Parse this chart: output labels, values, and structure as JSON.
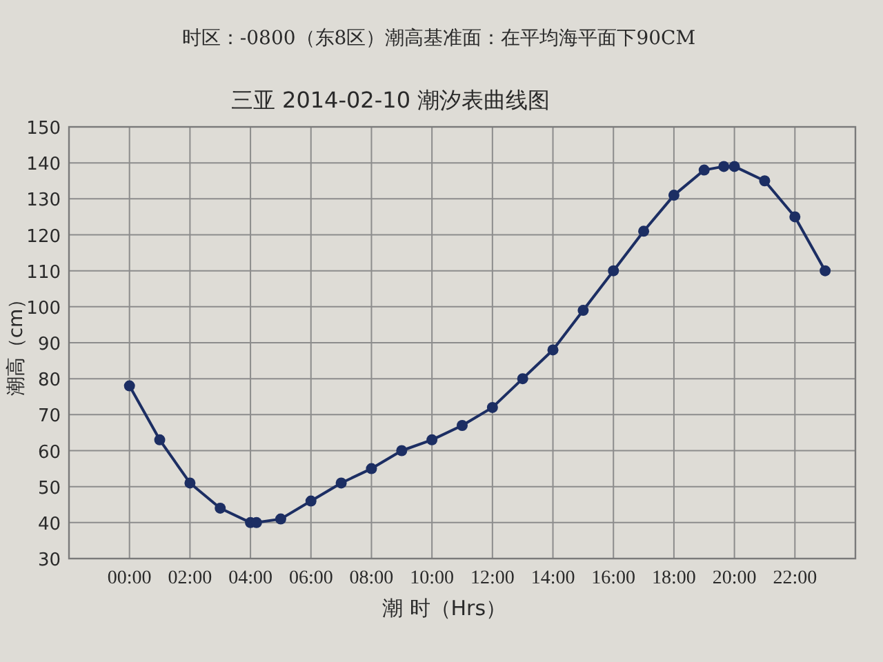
{
  "chart_data": {
    "type": "line",
    "subtitle": "时区：-0800（东8区）潮高基准面：在平均海平面下90CM",
    "title": "三亚 2014-02-10 潮汐表曲线图",
    "xlabel": "潮 时（Hrs）",
    "ylabel": "潮高（cm）",
    "x": [
      0,
      1,
      2,
      3,
      4,
      4.2,
      5,
      6,
      7,
      8,
      9,
      10,
      11,
      12,
      13,
      14,
      15,
      16,
      17,
      18,
      19,
      19.65,
      20,
      21,
      22,
      23
    ],
    "values": [
      78,
      63,
      51,
      44,
      40,
      40,
      41,
      46,
      51,
      55,
      60,
      63,
      67,
      72,
      80,
      88,
      99,
      110,
      121,
      131,
      138,
      139,
      139,
      135,
      125,
      110
    ],
    "color": "#1c2e63",
    "marker": "circle",
    "line_style": "solid",
    "grid": true,
    "xlim": [
      -2,
      24
    ],
    "xticks": [
      {
        "value": 0,
        "label": "00:00"
      },
      {
        "value": 2,
        "label": "02:00"
      },
      {
        "value": 4,
        "label": "04:00"
      },
      {
        "value": 6,
        "label": "06:00"
      },
      {
        "value": 8,
        "label": "08:00"
      },
      {
        "value": 10,
        "label": "10:00"
      },
      {
        "value": 12,
        "label": "12:00"
      },
      {
        "value": 14,
        "label": "14:00"
      },
      {
        "value": 16,
        "label": "16:00"
      },
      {
        "value": 18,
        "label": "18:00"
      },
      {
        "value": 20,
        "label": "20:00"
      },
      {
        "value": 22,
        "label": "22:00"
      }
    ],
    "ylim": [
      30,
      150
    ],
    "yticks": [
      30,
      40,
      50,
      60,
      70,
      80,
      90,
      100,
      110,
      120,
      130,
      140,
      150
    ]
  }
}
